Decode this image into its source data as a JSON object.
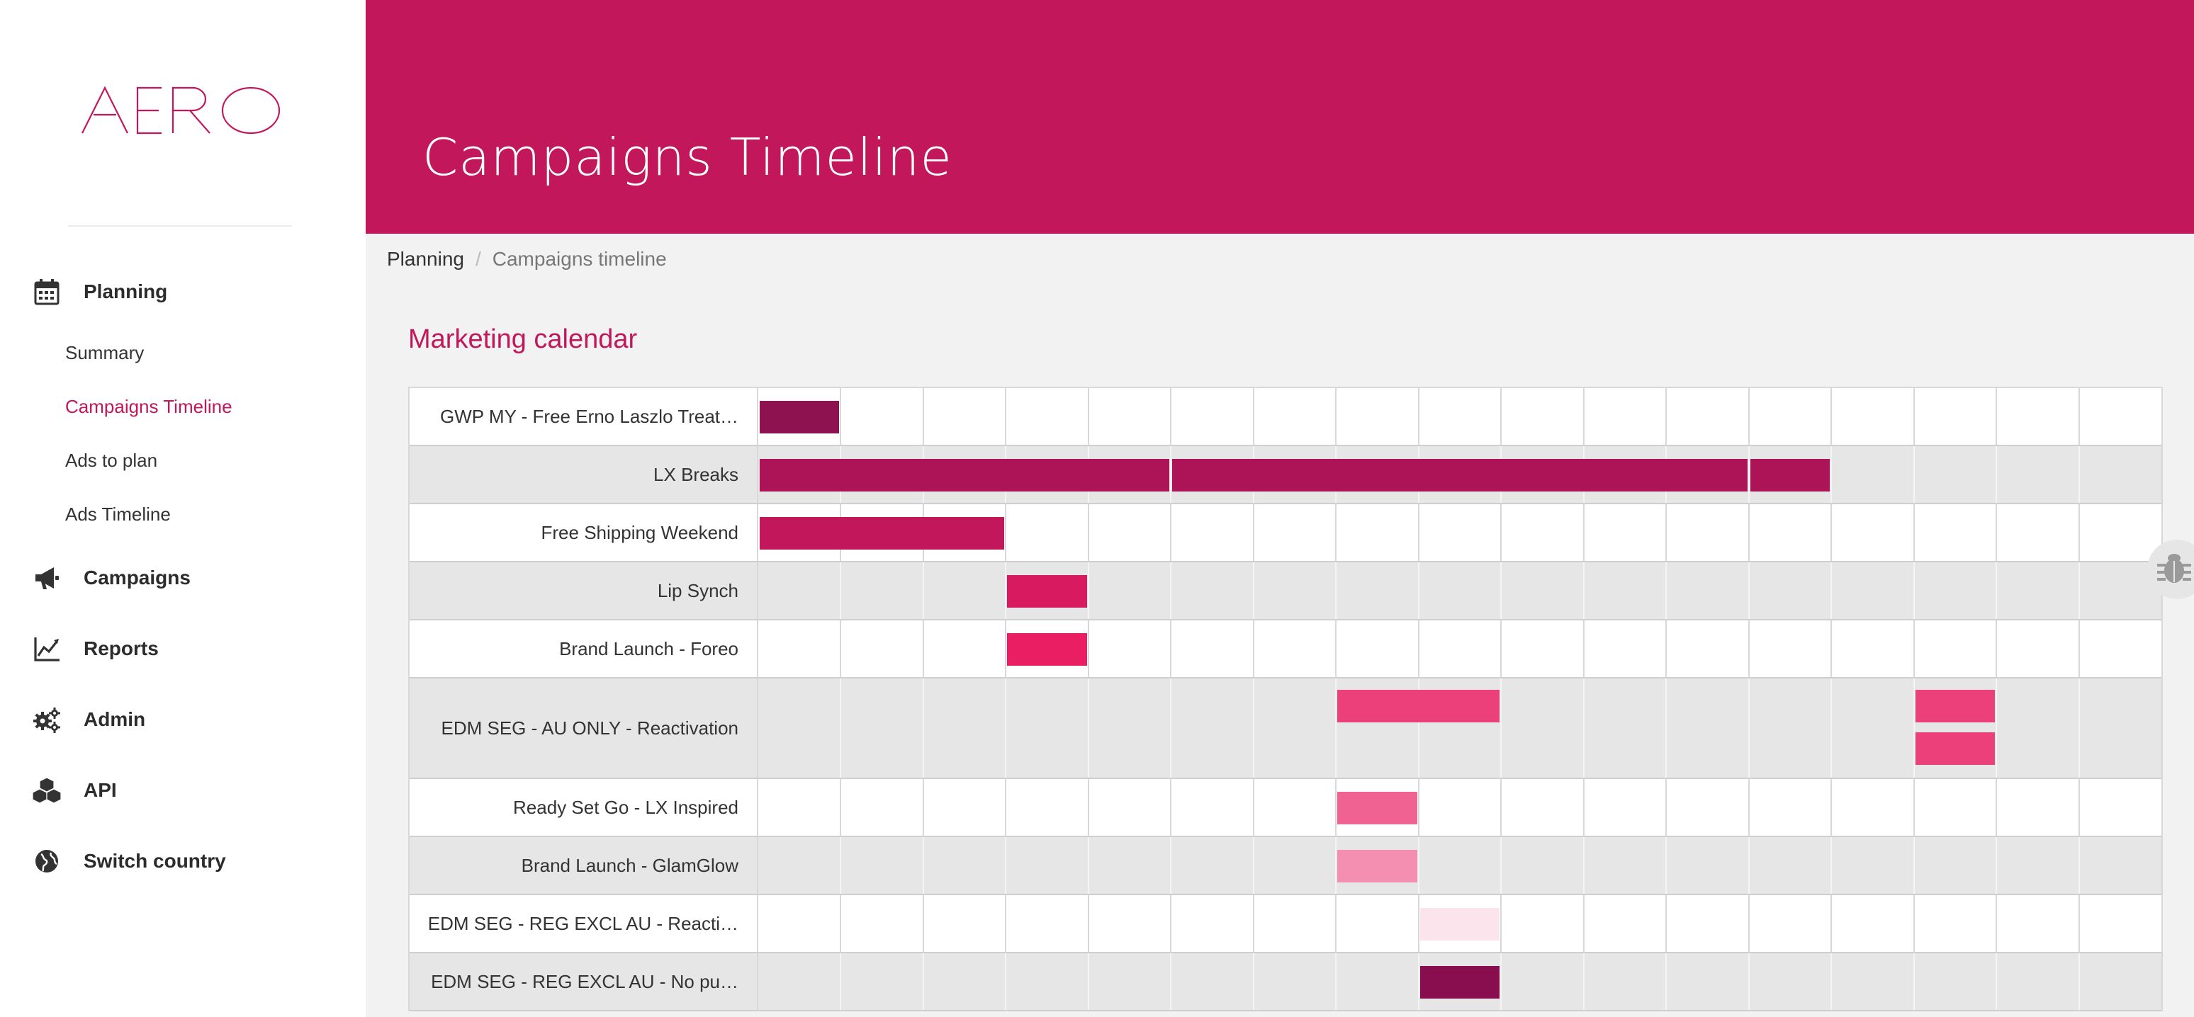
{
  "app": {
    "logo_text": "AERO"
  },
  "header": {
    "title": "Campaigns Timeline"
  },
  "breadcrumb": {
    "items": [
      "Planning",
      "Campaigns timeline"
    ],
    "separator": "/"
  },
  "sidebar": {
    "nav": [
      {
        "label": "Planning",
        "icon": "calendar-icon"
      },
      {
        "label": "Campaigns",
        "icon": "megaphone-icon"
      },
      {
        "label": "Reports",
        "icon": "line-chart-icon"
      },
      {
        "label": "Admin",
        "icon": "gears-icon"
      },
      {
        "label": "API",
        "icon": "cubes-icon"
      },
      {
        "label": "Switch country",
        "icon": "globe-icon"
      }
    ],
    "planning_sub": [
      {
        "label": "Summary",
        "active": false
      },
      {
        "label": "Campaigns Timeline",
        "active": true
      },
      {
        "label": "Ads to plan",
        "active": false
      },
      {
        "label": "Ads Timeline",
        "active": false
      }
    ]
  },
  "content": {
    "title": "Marketing calendar"
  },
  "colors": {
    "brand": "#c2185b",
    "header_bg": "#c2185b",
    "active_link": "#c2185b"
  },
  "calendar": {
    "columns": 17,
    "rows": [
      {
        "label": "GWP MY - Free Erno Laszlo Treat…",
        "bars": [
          {
            "start": 0,
            "span": 1,
            "color": "#8e1150"
          }
        ]
      },
      {
        "label": "LX Breaks",
        "bars": [
          {
            "start": 0,
            "span": 5,
            "color": "#ad1457"
          },
          {
            "start": 5,
            "span": 7,
            "color": "#ad1457"
          },
          {
            "start": 12,
            "span": 1,
            "color": "#ad1457"
          }
        ]
      },
      {
        "label": "Free Shipping Weekend",
        "bars": [
          {
            "start": 0,
            "span": 3,
            "color": "#c2185b"
          }
        ]
      },
      {
        "label": "Lip Synch",
        "bars": [
          {
            "start": 3,
            "span": 1,
            "color": "#d81b60"
          }
        ]
      },
      {
        "label": "Brand Launch - Foreo",
        "bars": [
          {
            "start": 3,
            "span": 1,
            "color": "#e91e63"
          }
        ]
      },
      {
        "label": "EDM SEG - AU ONLY - Reactivation",
        "tall": true,
        "bars": [
          {
            "start": 7,
            "span": 2,
            "color": "#ec407a",
            "lane": 0
          },
          {
            "start": 14,
            "span": 1,
            "color": "#ec407a",
            "lane": 0
          },
          {
            "start": 14,
            "span": 1,
            "color": "#ec407a",
            "lane": 1
          }
        ]
      },
      {
        "label": "Ready Set Go - LX Inspired",
        "bars": [
          {
            "start": 7,
            "span": 1,
            "color": "#f06292"
          }
        ]
      },
      {
        "label": "Brand Launch - GlamGlow",
        "bars": [
          {
            "start": 7,
            "span": 1,
            "color": "#f48fb1"
          }
        ]
      },
      {
        "label": "EDM SEG - REG EXCL AU - Reacti…",
        "bars": [
          {
            "start": 8,
            "span": 1,
            "color": "#fce4ec"
          }
        ]
      },
      {
        "label": "EDM SEG - REG EXCL AU - No pu…",
        "bars": [
          {
            "start": 8,
            "span": 1,
            "color": "#880e4f"
          }
        ]
      }
    ]
  }
}
